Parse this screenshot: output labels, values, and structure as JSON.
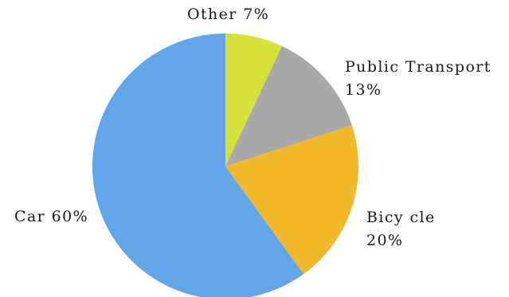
{
  "chart_data": {
    "type": "pie",
    "title": "",
    "slices": [
      {
        "label": "Other",
        "value_label": "7%",
        "value": 7,
        "color": "#d6e23a"
      },
      {
        "label": "Public Transport",
        "value_label": "13%",
        "value": 13,
        "color": "#a9a9aa"
      },
      {
        "label": "Bicycle",
        "value_label": "20%",
        "value": 20,
        "color": "#f3b92c"
      },
      {
        "label": "Car",
        "value_label": "60%",
        "value": 60,
        "color": "#62a6e9"
      }
    ],
    "label_text": {
      "other": "Other 7%",
      "public_transport_name": "Public Transport",
      "public_transport_value": "13%",
      "bicycle_name": "Bicy cle",
      "bicycle_value": "20%",
      "car": "Car 60%"
    }
  }
}
